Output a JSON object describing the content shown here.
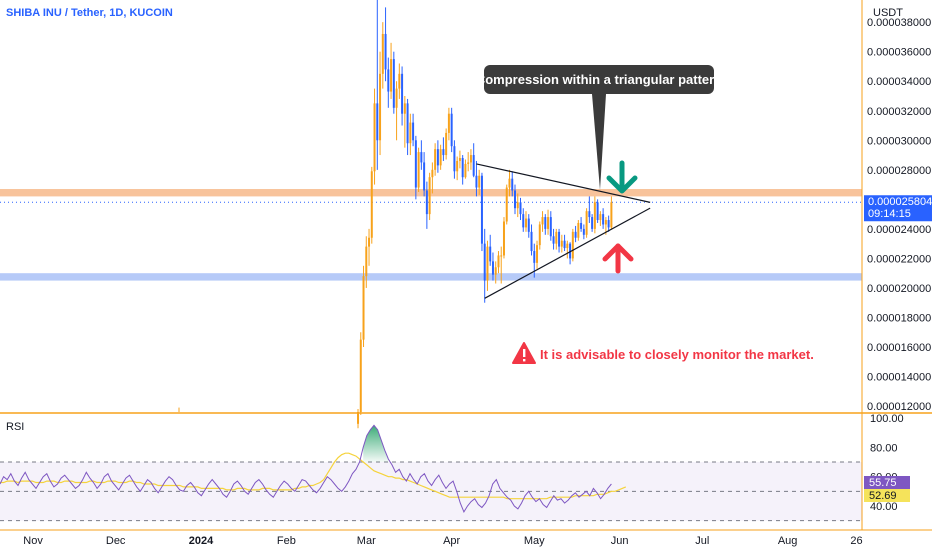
{
  "header": {
    "symbol": "SHIBA INU / Tether, 1D, KUCOIN",
    "currency": "USDT"
  },
  "annotations": {
    "bubble": "Compression within a triangular pattern",
    "warning": "It is advisable to closely monitor the market."
  },
  "price_tag": {
    "value": "0.000025804",
    "countdown": "09:14:15"
  },
  "rsi": {
    "title": "RSI",
    "value_tag": "55.75",
    "ma_tag": "52.69"
  },
  "colors": {
    "up": "#f7a21b",
    "down": "#2962ff",
    "resistance": "#f7b98a",
    "support": "#aec4f7",
    "bubble": "#3b3b3b",
    "bull_arrow": "#f23645",
    "bear_arrow": "#089981",
    "rsi_line": "#7e57c2",
    "rsi_ma": "#f5d33b",
    "axis_border": "#f7a21b"
  },
  "icons": [
    "warning-icon",
    "arrow-down-icon",
    "arrow-up-icon"
  ],
  "chart_data": [
    {
      "type": "candlestick",
      "title": "SHIBA INU / Tether, 1D, KUCOIN",
      "ylabel": "USDT",
      "yticks": [
        "0.000038000",
        "0.000036000",
        "0.000034000",
        "0.000032000",
        "0.000030000",
        "0.000028000",
        "0.000026000",
        "0.000024000",
        "0.000022000",
        "0.000020000",
        "0.000018000",
        "0.000016000",
        "0.000014000",
        "0.000012000"
      ],
      "ylim": [
        1.16e-05,
        3.95e-05
      ],
      "xticks": [
        "Nov",
        "Dec",
        "2024",
        "Feb",
        "Mar",
        "Apr",
        "May",
        "Jun",
        "Jul",
        "Aug",
        "26"
      ],
      "resistance_zone": [
        2.62e-05,
        2.67e-05
      ],
      "support_zone": [
        2.05e-05,
        2.1e-05
      ],
      "last_price": 2.5804e-05,
      "triangle": {
        "upper": [
          [
            "2024-04-10",
            2.84e-05
          ],
          [
            "2024-05-30",
            2.6e-05
          ]
        ],
        "lower": [
          [
            "2024-04-13",
            1.93e-05
          ],
          [
            "2024-05-30",
            2.5e-05
          ]
        ]
      },
      "ohlc": [
        [
          "2024-02-27",
          1.08e-05,
          1.18e-05,
          1.05e-05,
          1.16e-05
        ],
        [
          "2024-02-28",
          1.16e-05,
          1.7e-05,
          1.14e-05,
          1.65e-05
        ],
        [
          "2024-02-29",
          1.65e-05,
          2.15e-05,
          1.6e-05,
          2.08e-05
        ],
        [
          "2024-03-01",
          2.08e-05,
          2.35e-05,
          2e-05,
          2.28e-05
        ],
        [
          "2024-03-02",
          2.28e-05,
          2.4e-05,
          2.15e-05,
          2.34e-05
        ],
        [
          "2024-03-03",
          2.34e-05,
          2.82e-05,
          2.3e-05,
          2.79e-05
        ],
        [
          "2024-03-04",
          2.79e-05,
          3.35e-05,
          2.7e-05,
          3.25e-05
        ],
        [
          "2024-03-05",
          3.25e-05,
          3.95e-05,
          2.8e-05,
          3e-05
        ],
        [
          "2024-03-06",
          3e-05,
          3.6e-05,
          2.9e-05,
          3.45e-05
        ],
        [
          "2024-03-07",
          3.45e-05,
          3.8e-05,
          3.35e-05,
          3.72e-05
        ],
        [
          "2024-03-08",
          3.72e-05,
          3.9e-05,
          3.4e-05,
          3.48e-05
        ],
        [
          "2024-03-09",
          3.48e-05,
          3.56e-05,
          3.22e-05,
          3.33e-05
        ],
        [
          "2024-03-10",
          3.33e-05,
          3.66e-05,
          3.28e-05,
          3.55e-05
        ],
        [
          "2024-03-11",
          3.55e-05,
          3.6e-05,
          3.18e-05,
          3.22e-05
        ],
        [
          "2024-03-12",
          3.22e-05,
          3.4e-05,
          3e-05,
          3.35e-05
        ],
        [
          "2024-03-13",
          3.35e-05,
          3.52e-05,
          3.28e-05,
          3.45e-05
        ],
        [
          "2024-03-14",
          3.45e-05,
          3.5e-05,
          3.1e-05,
          3.18e-05
        ],
        [
          "2024-03-15",
          3.18e-05,
          3.3e-05,
          2.95e-05,
          3.25e-05
        ],
        [
          "2024-03-16",
          3.25e-05,
          3.28e-05,
          2.9e-05,
          2.98e-05
        ],
        [
          "2024-03-17",
          2.98e-05,
          3.18e-05,
          2.9e-05,
          3.12e-05
        ],
        [
          "2024-03-18",
          3.12e-05,
          3.18e-05,
          2.96e-05,
          3e-05
        ],
        [
          "2024-03-19",
          3e-05,
          3.03e-05,
          2.6e-05,
          2.68e-05
        ],
        [
          "2024-03-20",
          2.68e-05,
          2.95e-05,
          2.65e-05,
          2.92e-05
        ],
        [
          "2024-03-21",
          2.92e-05,
          3e-05,
          2.8e-05,
          2.85e-05
        ],
        [
          "2024-03-22",
          2.85e-05,
          2.92e-05,
          2.62e-05,
          2.66e-05
        ],
        [
          "2024-03-23",
          2.66e-05,
          2.72e-05,
          2.4e-05,
          2.5e-05
        ],
        [
          "2024-03-24",
          2.5e-05,
          2.78e-05,
          2.46e-05,
          2.75e-05
        ],
        [
          "2024-03-25",
          2.75e-05,
          2.85e-05,
          2.64e-05,
          2.8e-05
        ],
        [
          "2024-03-26",
          2.8e-05,
          2.98e-05,
          2.76e-05,
          2.94e-05
        ],
        [
          "2024-03-27",
          2.94e-05,
          3e-05,
          2.78e-05,
          2.83e-05
        ],
        [
          "2024-03-28",
          2.83e-05,
          2.97e-05,
          2.8e-05,
          2.94e-05
        ],
        [
          "2024-03-29",
          2.94e-05,
          3.02e-05,
          2.86e-05,
          2.9e-05
        ],
        [
          "2024-03-30",
          2.9e-05,
          3.08e-05,
          2.87e-05,
          3.05e-05
        ],
        [
          "2024-03-31",
          3.05e-05,
          3.22e-05,
          3e-05,
          3.18e-05
        ],
        [
          "2024-04-01",
          3.18e-05,
          3.22e-05,
          2.92e-05,
          2.96e-05
        ],
        [
          "2024-04-02",
          2.96e-05,
          3e-05,
          2.74e-05,
          2.79e-05
        ],
        [
          "2024-04-03",
          2.79e-05,
          2.89e-05,
          2.73e-05,
          2.86e-05
        ],
        [
          "2024-04-04",
          2.86e-05,
          2.93e-05,
          2.81e-05,
          2.88e-05
        ],
        [
          "2024-04-05",
          2.88e-05,
          2.9e-05,
          2.7e-05,
          2.75e-05
        ],
        [
          "2024-04-06",
          2.75e-05,
          2.87e-05,
          2.74e-05,
          2.84e-05
        ],
        [
          "2024-04-07",
          2.84e-05,
          2.92e-05,
          2.79e-05,
          2.85e-05
        ],
        [
          "2024-04-08",
          2.85e-05,
          2.94e-05,
          2.8e-05,
          2.9e-05
        ],
        [
          "2024-04-09",
          2.9e-05,
          2.98e-05,
          2.75e-05,
          2.76e-05
        ],
        [
          "2024-04-10",
          2.76e-05,
          2.86e-05,
          2.62e-05,
          2.68e-05
        ],
        [
          "2024-04-11",
          2.68e-05,
          2.8e-05,
          2.63e-05,
          2.76e-05
        ],
        [
          "2024-04-12",
          2.76e-05,
          2.78e-05,
          2.25e-05,
          2.3e-05
        ],
        [
          "2024-04-13",
          2.3e-05,
          2.4e-05,
          1.9e-05,
          2.05e-05
        ],
        [
          "2024-04-14",
          2.05e-05,
          2.32e-05,
          1.98e-05,
          2.28e-05
        ],
        [
          "2024-04-15",
          2.28e-05,
          2.36e-05,
          2.15e-05,
          2.18e-05
        ],
        [
          "2024-04-16",
          2.18e-05,
          2.24e-05,
          2.05e-05,
          2.09e-05
        ],
        [
          "2024-04-17",
          2.09e-05,
          2.18e-05,
          2.03e-05,
          2.14e-05
        ],
        [
          "2024-04-18",
          2.14e-05,
          2.25e-05,
          2.1e-05,
          2.22e-05
        ],
        [
          "2024-04-19",
          2.22e-05,
          2.28e-05,
          2.03e-05,
          2.22e-05
        ],
        [
          "2024-04-20",
          2.22e-05,
          2.48e-05,
          2.2e-05,
          2.45e-05
        ],
        [
          "2024-04-21",
          2.45e-05,
          2.7e-05,
          2.43e-05,
          2.68e-05
        ],
        [
          "2024-04-22",
          2.68e-05,
          2.8e-05,
          2.62e-05,
          2.74e-05
        ],
        [
          "2024-04-23",
          2.74e-05,
          2.79e-05,
          2.62e-05,
          2.66e-05
        ],
        [
          "2024-04-24",
          2.66e-05,
          2.7e-05,
          2.5e-05,
          2.54e-05
        ],
        [
          "2024-04-25",
          2.54e-05,
          2.64e-05,
          2.48e-05,
          2.58e-05
        ],
        [
          "2024-04-26",
          2.58e-05,
          2.61e-05,
          2.46e-05,
          2.5e-05
        ],
        [
          "2024-04-27",
          2.5e-05,
          2.54e-05,
          2.38e-05,
          2.41e-05
        ],
        [
          "2024-04-28",
          2.41e-05,
          2.52e-05,
          2.38e-05,
          2.47e-05
        ],
        [
          "2024-04-29",
          2.47e-05,
          2.5e-05,
          2.34e-05,
          2.38e-05
        ],
        [
          "2024-04-30",
          2.38e-05,
          2.43e-05,
          2.22e-05,
          2.25e-05
        ],
        [
          "2024-05-01",
          2.25e-05,
          2.3e-05,
          2.07e-05,
          2.17e-05
        ],
        [
          "2024-05-02",
          2.17e-05,
          2.32e-05,
          2.13e-05,
          2.29e-05
        ],
        [
          "2024-05-03",
          2.29e-05,
          2.45e-05,
          2.26e-05,
          2.43e-05
        ],
        [
          "2024-05-04",
          2.43e-05,
          2.52e-05,
          2.38e-05,
          2.48e-05
        ],
        [
          "2024-05-05",
          2.48e-05,
          2.5e-05,
          2.36e-05,
          2.4e-05
        ],
        [
          "2024-05-06",
          2.4e-05,
          2.53e-05,
          2.36e-05,
          2.48e-05
        ],
        [
          "2024-05-07",
          2.48e-05,
          2.52e-05,
          2.32e-05,
          2.35e-05
        ],
        [
          "2024-05-08",
          2.35e-05,
          2.4e-05,
          2.26e-05,
          2.3e-05
        ],
        [
          "2024-05-09",
          2.3e-05,
          2.4e-05,
          2.26e-05,
          2.38e-05
        ],
        [
          "2024-05-10",
          2.38e-05,
          2.4e-05,
          2.24e-05,
          2.28e-05
        ],
        [
          "2024-05-11",
          2.28e-05,
          2.36e-05,
          2.24e-05,
          2.32e-05
        ],
        [
          "2024-05-12",
          2.32e-05,
          2.36e-05,
          2.25e-05,
          2.27e-05
        ],
        [
          "2024-05-13",
          2.27e-05,
          2.32e-05,
          2.2e-05,
          2.3e-05
        ],
        [
          "2024-05-14",
          2.3e-05,
          2.31e-05,
          2.16e-05,
          2.2e-05
        ],
        [
          "2024-05-15",
          2.2e-05,
          2.4e-05,
          2.18e-05,
          2.38e-05
        ],
        [
          "2024-05-16",
          2.38e-05,
          2.42e-05,
          2.31e-05,
          2.34e-05
        ],
        [
          "2024-05-17",
          2.34e-05,
          2.46e-05,
          2.32e-05,
          2.44e-05
        ],
        [
          "2024-05-18",
          2.44e-05,
          2.48e-05,
          2.38e-05,
          2.4e-05
        ],
        [
          "2024-05-19",
          2.4e-05,
          2.43e-05,
          2.33e-05,
          2.36e-05
        ],
        [
          "2024-05-20",
          2.36e-05,
          2.54e-05,
          2.34e-05,
          2.52e-05
        ],
        [
          "2024-05-21",
          2.52e-05,
          2.62e-05,
          2.44e-05,
          2.48e-05
        ],
        [
          "2024-05-22",
          2.48e-05,
          2.5e-05,
          2.38e-05,
          2.4e-05
        ],
        [
          "2024-05-23",
          2.4e-05,
          2.62e-05,
          2.37e-05,
          2.58e-05
        ],
        [
          "2024-05-24",
          2.58e-05,
          2.6e-05,
          2.44e-05,
          2.46e-05
        ],
        [
          "2024-05-25",
          2.46e-05,
          2.52e-05,
          2.42e-05,
          2.5e-05
        ],
        [
          "2024-05-26",
          2.5e-05,
          2.54e-05,
          2.4e-05,
          2.43e-05
        ],
        [
          "2024-05-27",
          2.43e-05,
          2.48e-05,
          2.36e-05,
          2.46e-05
        ],
        [
          "2024-05-28",
          2.46e-05,
          2.49e-05,
          2.38e-05,
          2.41e-05
        ],
        [
          "2024-05-29",
          2.41e-05,
          2.62e-05,
          2.4e-05,
          2.58e-05
        ]
      ]
    },
    {
      "type": "line",
      "title": "RSI",
      "ylim": [
        25,
        100
      ],
      "yticks": [
        "100.00",
        "80.00",
        "60.00",
        "40.00"
      ],
      "bands": [
        30,
        50,
        70
      ],
      "series": [
        {
          "name": "RSI",
          "values": [
            55,
            60,
            58,
            62,
            57,
            54,
            59,
            63,
            58,
            55,
            52,
            56,
            60,
            62,
            57,
            53,
            55,
            59,
            61,
            58,
            55,
            52,
            54,
            58,
            63,
            59,
            56,
            52,
            55,
            60,
            62,
            57,
            54,
            51,
            55,
            59,
            61,
            57,
            53,
            50,
            54,
            58,
            56,
            52,
            49,
            53,
            57,
            60,
            58,
            54,
            51,
            50,
            54,
            56,
            53,
            49,
            47,
            51,
            55,
            58,
            55,
            52,
            48,
            46,
            50,
            55,
            57,
            54,
            50,
            48,
            52,
            56,
            58,
            55,
            51,
            48,
            46,
            50,
            54,
            57,
            55,
            52,
            50,
            54,
            58,
            57,
            54,
            51,
            49,
            52,
            56,
            60,
            58,
            55,
            52,
            50,
            53,
            57,
            62,
            65,
            70,
            80,
            88,
            92,
            95,
            92,
            85,
            78,
            72,
            68,
            63,
            65,
            60,
            57,
            62,
            58,
            55,
            60,
            62,
            57,
            54,
            58,
            61,
            56,
            52,
            55,
            57,
            50,
            42,
            36,
            40,
            43,
            45,
            41,
            39,
            42,
            47,
            55,
            58,
            52,
            49,
            46,
            44,
            40,
            38,
            42,
            47,
            50,
            46,
            43,
            45,
            41,
            39,
            43,
            47,
            44,
            45,
            42,
            44,
            47,
            49,
            46,
            48,
            50,
            47,
            52,
            49,
            45,
            48,
            52,
            55
          ]
        },
        {
          "name": "RSI-based MA",
          "values": [
            56,
            56,
            57,
            57,
            57,
            56,
            57,
            57,
            57,
            57,
            56,
            56,
            56,
            57,
            57,
            57,
            56,
            56,
            57,
            57,
            57,
            56,
            56,
            56,
            56,
            57,
            57,
            56,
            56,
            56,
            57,
            57,
            57,
            56,
            56,
            56,
            57,
            57,
            56,
            56,
            55,
            55,
            55,
            55,
            54,
            54,
            54,
            54,
            54,
            54,
            54,
            53,
            53,
            53,
            53,
            53,
            52,
            52,
            52,
            52,
            52,
            52,
            52,
            51,
            51,
            51,
            52,
            52,
            52,
            51,
            51,
            51,
            51,
            52,
            52,
            52,
            51,
            51,
            51,
            51,
            51,
            51,
            52,
            52,
            53,
            53,
            54,
            54,
            55,
            56,
            58,
            62,
            66,
            70,
            73,
            75,
            76,
            76,
            75,
            74,
            72,
            70,
            68,
            66,
            64,
            63,
            62,
            61,
            60,
            60,
            59,
            59,
            58,
            58,
            57,
            56,
            55,
            54,
            53,
            52,
            51,
            50,
            49,
            48,
            47,
            46,
            46,
            46,
            46,
            46,
            46,
            46,
            46,
            46,
            46,
            46,
            46,
            46,
            46,
            46,
            46,
            45,
            45,
            45,
            45,
            45,
            45,
            45,
            45,
            45,
            45,
            45,
            45,
            46,
            46,
            46,
            46,
            46,
            46,
            46,
            47,
            47,
            47,
            47,
            47,
            47,
            48,
            48,
            48,
            49,
            50,
            50,
            51,
            52,
            53
          ]
        }
      ]
    }
  ]
}
